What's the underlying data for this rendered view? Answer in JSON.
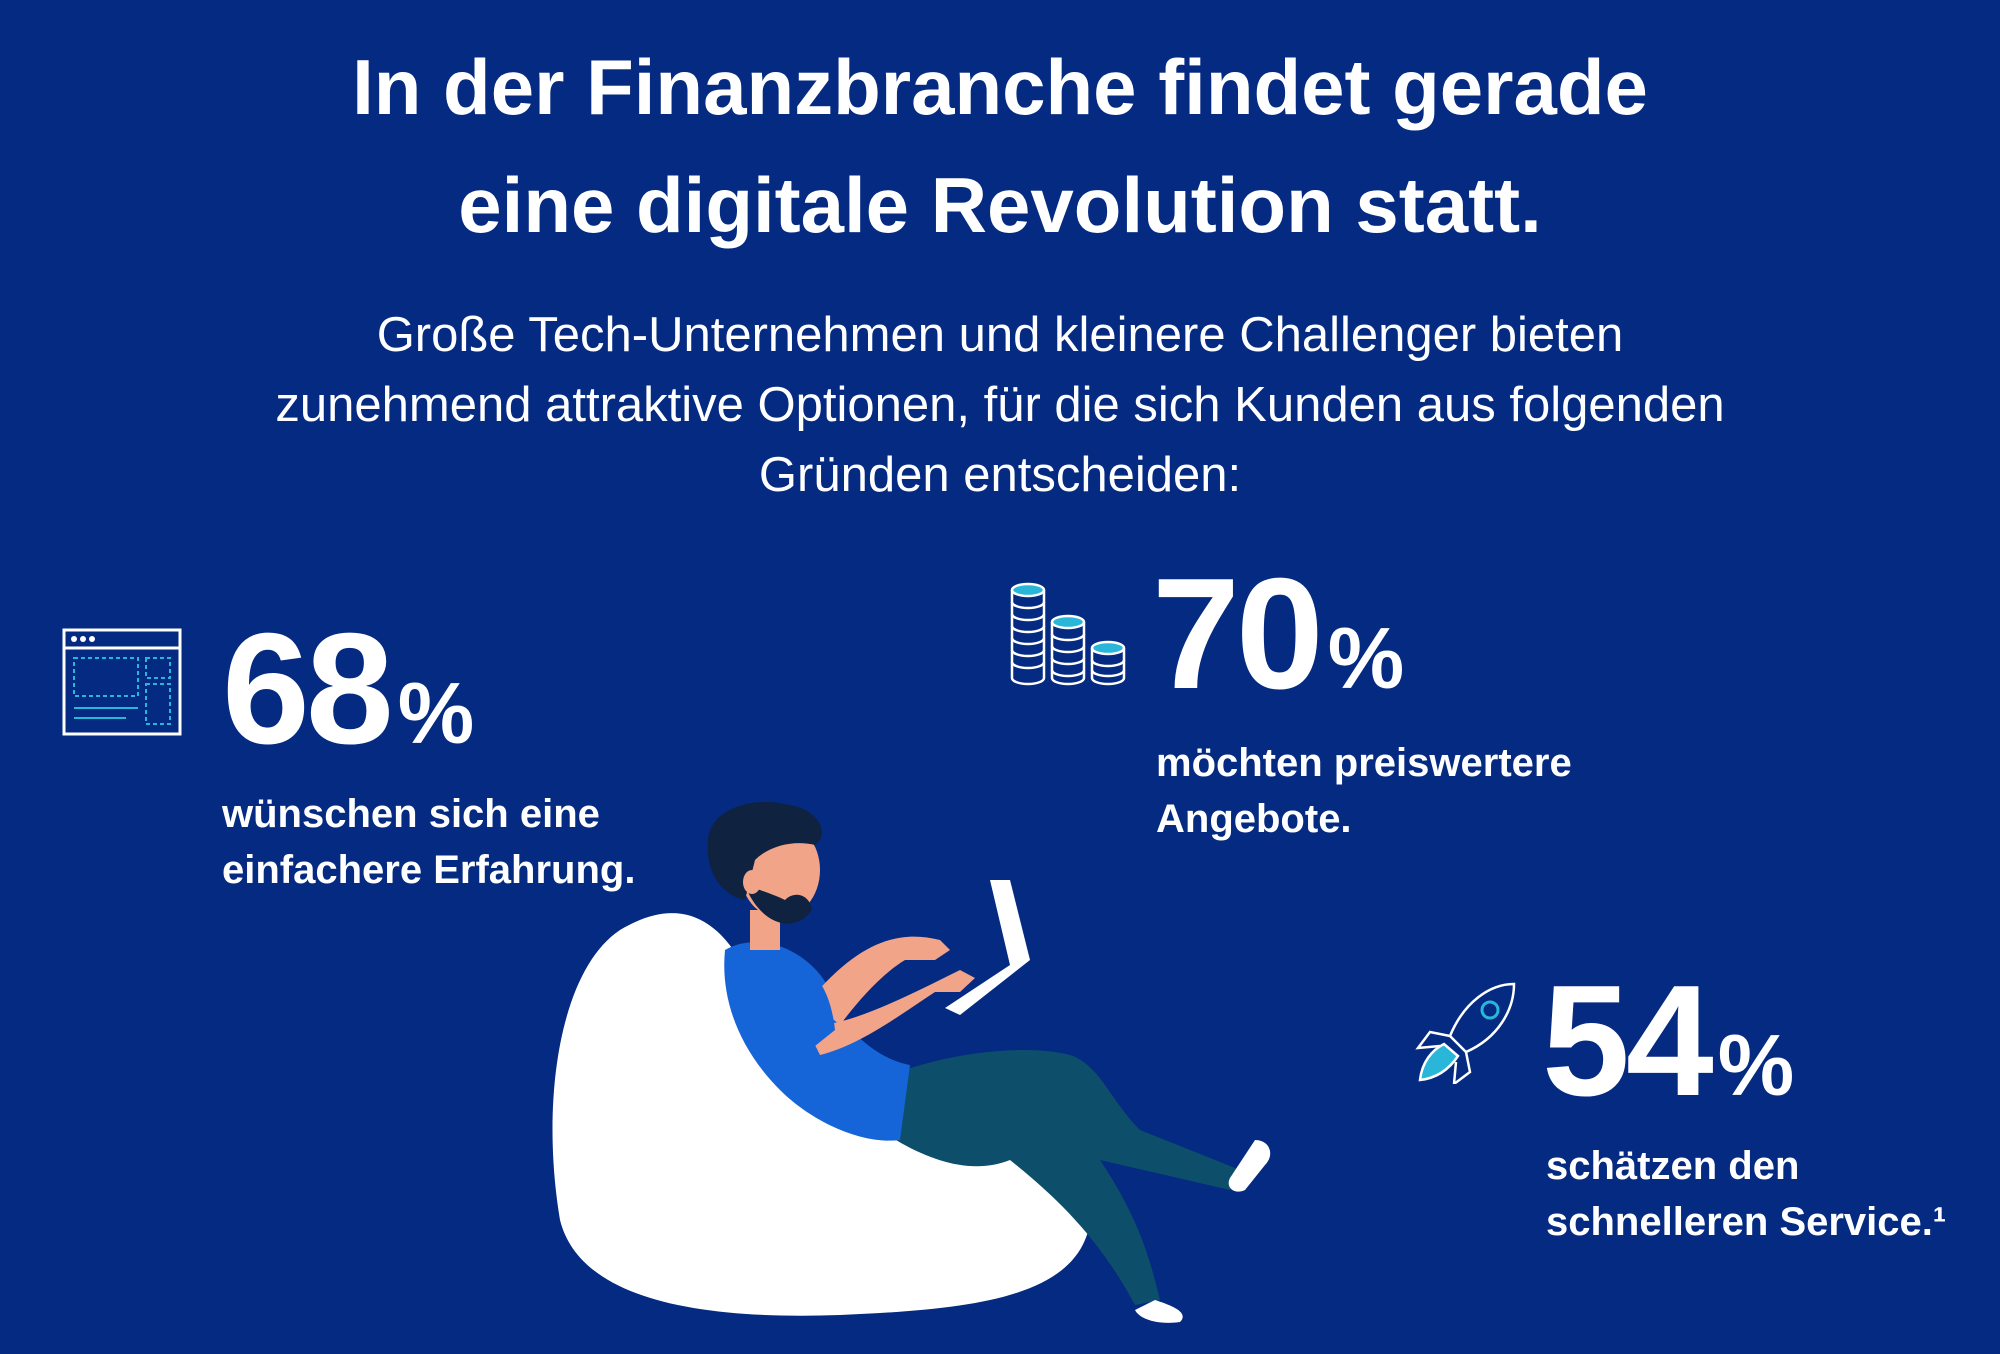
{
  "headline": {
    "line1": "In der Finanzbranche findet gerade",
    "line2": "eine digitale Revolution statt."
  },
  "intro": {
    "line1": "Große Tech-Unternehmen und kleinere Challenger bieten",
    "line2": "zunehmend attraktive Optionen, für die sich Kunden aus folgenden",
    "line3": "Gründen entscheiden:"
  },
  "stats": [
    {
      "value": "68",
      "unit": "%",
      "line1": "wünschen sich eine",
      "line2": "einfachere Erfahrung.",
      "icon": "browser-window-icon"
    },
    {
      "value": "70",
      "unit": "%",
      "line1": "möchten preiswertere",
      "line2": "Angebote.",
      "icon": "coin-stacks-icon"
    },
    {
      "value": "54",
      "unit": "%",
      "line1": "schätzen den",
      "line2": "schnelleren Service.¹",
      "icon": "rocket-icon"
    }
  ],
  "colors": {
    "background": "#052a82",
    "accent_cyan": "#29b6d8",
    "skin": "#f2a489",
    "shirt": "#1565d8",
    "pants": "#0d4f6b",
    "hair": "#0f2340"
  }
}
